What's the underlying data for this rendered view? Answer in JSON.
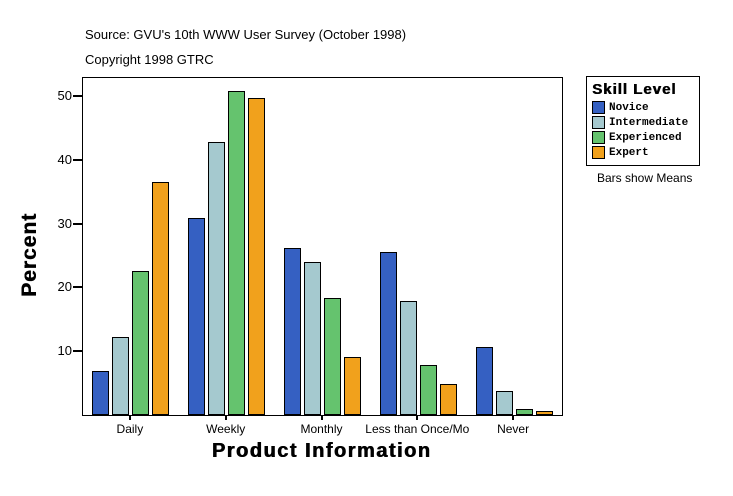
{
  "chart_data": {
    "type": "bar",
    "title": "Source: GVU's 10th WWW User Survey (October 1998)",
    "subtitle": "Copyright 1998 GTRC",
    "xlabel": "Product Information",
    "ylabel": "Percent",
    "categories": [
      "Daily",
      "Weekly",
      "Monthly",
      "Less than Once/Mo",
      "Never"
    ],
    "series": [
      {
        "name": "Novice",
        "color": "#3560C2",
        "values": [
          6.9,
          30.8,
          26.2,
          25.6,
          10.7
        ]
      },
      {
        "name": "Intermediate",
        "color": "#A5C9CF",
        "values": [
          12.2,
          42.8,
          24.0,
          17.8,
          3.7
        ]
      },
      {
        "name": "Experienced",
        "color": "#65C36E",
        "values": [
          22.5,
          50.8,
          18.3,
          7.9,
          1.0
        ]
      },
      {
        "name": "Expert",
        "color": "#F1A11C",
        "values": [
          36.5,
          49.6,
          9.1,
          4.8,
          0.6
        ]
      }
    ],
    "yticks": [
      10,
      20,
      30,
      40,
      50
    ],
    "ylim": [
      0,
      52.8
    ],
    "grid": false,
    "bar_border_color": "#000000",
    "legend": {
      "title": "Skill Level",
      "note": "Bars show Means",
      "position": "right"
    }
  }
}
